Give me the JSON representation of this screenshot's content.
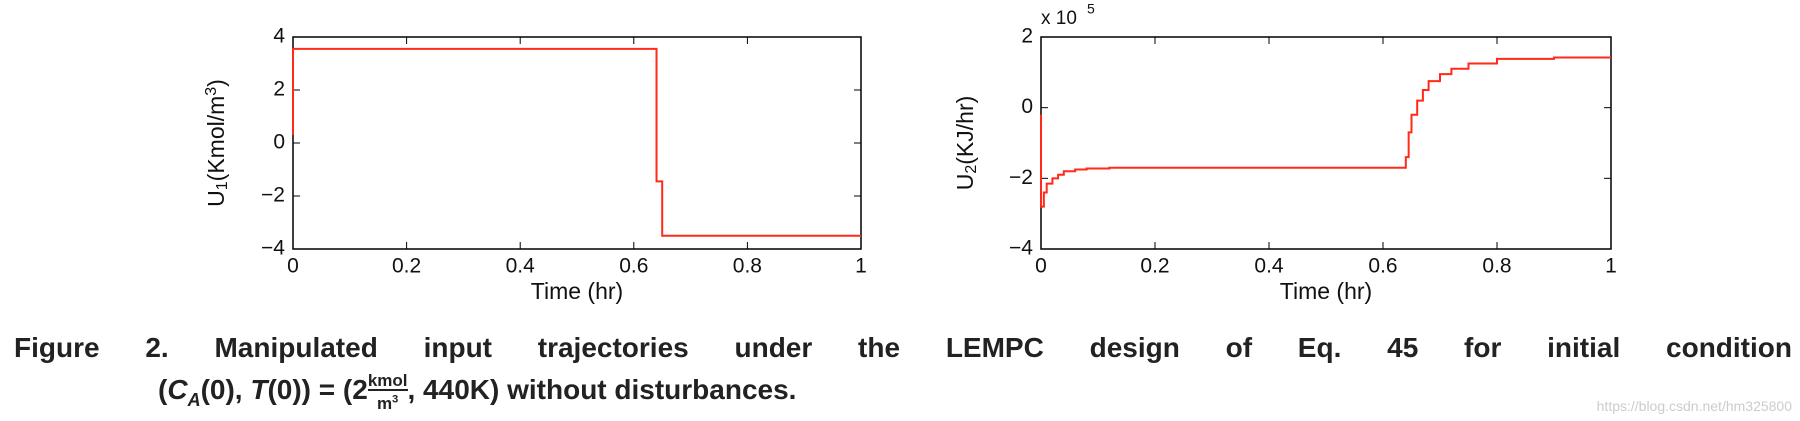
{
  "chart_data": [
    {
      "type": "line",
      "step": "post",
      "color": "#ff2a1a",
      "x": [
        0,
        0,
        0.64,
        0.64,
        0.65,
        0.65,
        1
      ],
      "values": [
        0.3,
        3.55,
        3.55,
        -1.45,
        -1.45,
        -3.5,
        -3.5
      ],
      "xlim": [
        0,
        1
      ],
      "xticks": [
        0,
        0.2,
        0.4,
        0.6,
        0.8,
        1
      ],
      "ylim": [
        -4,
        4
      ],
      "yticks": [
        {
          "value": -4,
          "label": "−4"
        },
        {
          "value": -2,
          "label": "−2"
        },
        0,
        2,
        4
      ],
      "xlabel": "Time (hr)",
      "ylabel": [
        "U",
        "1",
        "(Kmol/m",
        "3",
        ")"
      ]
    },
    {
      "type": "line",
      "step": "post",
      "color": "#ff2a1a",
      "x": [
        0,
        0,
        0.005,
        0.01,
        0.02,
        0.03,
        0.04,
        0.06,
        0.08,
        0.12,
        0.2,
        0.64,
        0.645,
        0.65,
        0.66,
        0.67,
        0.68,
        0.7,
        0.72,
        0.75,
        0.8,
        0.9,
        1
      ],
      "values": [
        -0.2,
        -2.8,
        -2.4,
        -2.15,
        -2.0,
        -1.9,
        -1.8,
        -1.75,
        -1.72,
        -1.7,
        -1.7,
        -1.4,
        -0.7,
        -0.2,
        0.2,
        0.5,
        0.75,
        0.95,
        1.1,
        1.25,
        1.38,
        1.42,
        1.42
      ],
      "xlim": [
        0,
        1
      ],
      "xticks": [
        0,
        0.2,
        0.4,
        0.6,
        0.8,
        1
      ],
      "ylim": [
        -4,
        2
      ],
      "yticks": [
        {
          "value": -4,
          "label": "−4"
        },
        {
          "value": -2,
          "label": "−2"
        },
        0,
        2
      ],
      "multiplier": [
        "x 10",
        "5"
      ],
      "xlabel": "Time (hr)",
      "ylabel": [
        "U",
        "2",
        "(KJ/hr)"
      ]
    }
  ],
  "caption": {
    "label": "Figure 2.",
    "line1": "Manipulated input trajectories under the LEMPC design of Eq. 45 for initial condition",
    "line2": [
      "(",
      "C",
      "A",
      "(0), ",
      "T",
      "(0)) = (2",
      "kmol",
      "m",
      "3",
      ", 440K)",
      "without disturbances."
    ]
  },
  "watermark": "https://blog.csdn.net/hm325800"
}
